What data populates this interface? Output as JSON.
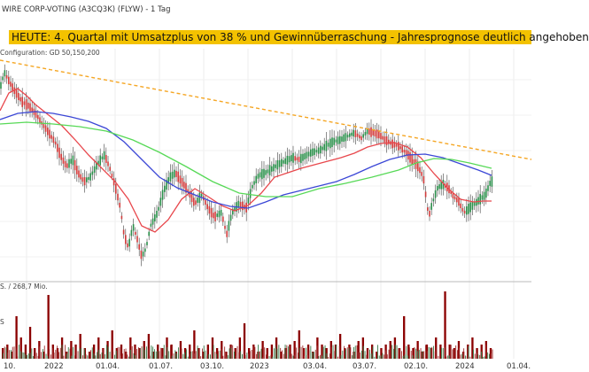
{
  "header": {
    "title": "WIRE CORP-VOTING (A3CQ3K) (FLYW) - 1 Tag",
    "configuration": "Configuration: GD 50,150,200"
  },
  "news": {
    "text": "HEUTE: 4. Quartal mit Umsatzplus von 38 % und Gewinnüberraschung - Jahresprognose deutlich angehoben",
    "background": "#f3c200"
  },
  "volume_panel": {
    "label_top": "S. / 268,7 Mio.",
    "label_mid": "S"
  },
  "chart_data": {
    "type": "line",
    "x_ticks": [
      "10.",
      "2022",
      "01.04.",
      "01.07.",
      "03.10.",
      "2023",
      "03.04.",
      "03.07.",
      "02.10.",
      "2024",
      "01.04."
    ],
    "colors": {
      "trendline": "#f5a623",
      "ma50": "#e8474c",
      "ma150": "#3b47d6",
      "ma200": "#57d957",
      "candle_up": "#2a8f4a",
      "candle_down": "#d23b3b",
      "volume": "#8b0000"
    },
    "series": [
      {
        "name": "Trendline",
        "x": [
          0,
          600
        ],
        "y": [
          68,
          180
        ]
      },
      {
        "name": "MA50",
        "x": [
          0,
          10,
          20,
          30,
          40,
          55,
          70,
          85,
          100,
          115,
          130,
          145,
          160,
          175,
          190,
          205,
          220,
          235,
          250,
          265,
          280,
          295,
          310,
          325,
          340,
          355,
          370,
          385,
          400,
          415,
          430,
          445,
          460,
          475,
          490,
          505,
          520,
          535,
          545,
          555
        ],
        "y": [
          125,
          105,
          100,
          108,
          118,
          130,
          142,
          158,
          175,
          190,
          205,
          225,
          255,
          262,
          248,
          225,
          213,
          222,
          232,
          238,
          232,
          218,
          200,
          195,
          190,
          186,
          182,
          178,
          173,
          166,
          162,
          161,
          166,
          178,
          196,
          212,
          225,
          228,
          227,
          227
        ]
      },
      {
        "name": "MA150",
        "x": [
          0,
          20,
          40,
          60,
          80,
          100,
          120,
          140,
          160,
          180,
          200,
          220,
          240,
          260,
          280,
          300,
          320,
          340,
          360,
          380,
          400,
          420,
          440,
          460,
          480,
          500,
          520,
          540,
          555
        ],
        "y": [
          135,
          128,
          126,
          128,
          132,
          137,
          145,
          160,
          180,
          200,
          212,
          220,
          228,
          233,
          235,
          228,
          220,
          215,
          210,
          205,
          197,
          188,
          180,
          175,
          174,
          178,
          185,
          192,
          198
        ]
      },
      {
        "name": "MA200",
        "x": [
          0,
          30,
          60,
          90,
          120,
          150,
          180,
          210,
          240,
          270,
          300,
          330,
          360,
          390,
          420,
          450,
          470,
          490,
          510,
          530,
          555
        ],
        "y": [
          140,
          138,
          140,
          143,
          148,
          158,
          172,
          188,
          205,
          218,
          222,
          222,
          213,
          207,
          200,
          192,
          184,
          179,
          180,
          184,
          190
        ]
      },
      {
        "name": "Price",
        "x": [
          0,
          5,
          12,
          18,
          25,
          33,
          40,
          48,
          55,
          62,
          68,
          75,
          82,
          88,
          95,
          102,
          110,
          118,
          124,
          130,
          136,
          140,
          145,
          150,
          155,
          160,
          165,
          170,
          178,
          185,
          192,
          198,
          205,
          212,
          220,
          228,
          235,
          242,
          250,
          256,
          262,
          270,
          278,
          285,
          292,
          300,
          308,
          315,
          322,
          330,
          338,
          345,
          352,
          360,
          368,
          376,
          384,
          392,
          400,
          408,
          415,
          422,
          428,
          435,
          442,
          450,
          458,
          465,
          472,
          478,
          484,
          488,
          494,
          500,
          506,
          512,
          518,
          524,
          530,
          536,
          542,
          548,
          554
        ],
        "y": [
          100,
          82,
          95,
          105,
          115,
          120,
          128,
          140,
          150,
          160,
          175,
          188,
          180,
          195,
          205,
          200,
          185,
          175,
          190,
          210,
          235,
          265,
          280,
          255,
          270,
          290,
          280,
          255,
          240,
          215,
          200,
          195,
          205,
          215,
          230,
          220,
          235,
          245,
          240,
          265,
          240,
          230,
          235,
          210,
          198,
          195,
          190,
          185,
          182,
          178,
          180,
          176,
          172,
          170,
          165,
          160,
          158,
          154,
          150,
          156,
          148,
          150,
          152,
          158,
          162,
          165,
          172,
          180,
          188,
          200,
          245,
          230,
          212,
          208,
          212,
          222,
          228,
          240,
          235,
          230,
          225,
          220,
          205
        ]
      }
    ],
    "volume": {
      "heights": [
        0.15,
        0.2,
        0.1,
        0.6,
        0.3,
        0.2,
        0.45,
        0.15,
        0.25,
        0.1,
        0.9,
        0.2,
        0.15,
        0.3,
        0.1,
        0.25,
        0.2,
        0.35,
        0.15,
        0.1,
        0.2,
        0.3,
        0.15,
        0.25,
        0.4,
        0.15,
        0.2,
        0.1,
        0.3,
        0.2,
        0.15,
        0.25,
        0.35,
        0.1,
        0.2,
        0.15,
        0.3,
        0.2,
        0.1,
        0.25,
        0.15,
        0.2,
        0.4,
        0.15,
        0.1,
        0.2,
        0.3,
        0.15,
        0.25,
        0.1,
        0.2,
        0.15,
        0.3,
        0.5,
        0.15,
        0.2,
        0.1,
        0.25,
        0.15,
        0.2,
        0.3,
        0.1,
        0.15,
        0.2,
        0.25,
        0.4,
        0.15,
        0.2,
        0.1,
        0.3,
        0.2,
        0.15,
        0.25,
        0.2,
        0.35,
        0.15,
        0.2,
        0.1,
        0.25,
        0.3,
        0.15,
        0.2,
        0.1,
        0.15,
        0.2,
        0.25,
        0.3,
        0.15,
        0.6,
        0.2,
        0.15,
        0.25,
        0.1,
        0.2,
        0.15,
        0.3,
        0.2,
        0.95,
        0.2,
        0.15,
        0.25,
        0.1,
        0.2,
        0.3,
        0.15,
        0.2,
        0.25,
        0.15
      ]
    }
  }
}
